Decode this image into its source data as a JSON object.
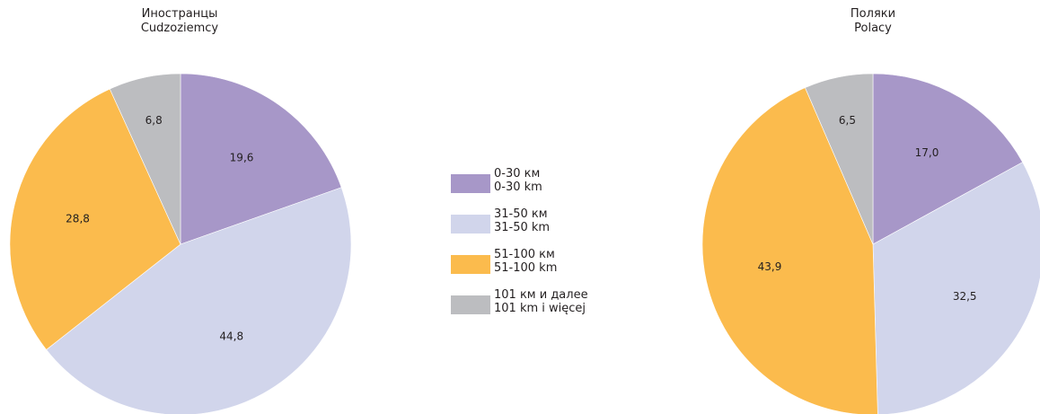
{
  "colors": {
    "0-30": "#a797c8",
    "31-50": "#d1d5eb",
    "51-100": "#fbbb4d",
    "101+": "#bcbdc0",
    "text": "#231f20"
  },
  "legend": [
    {
      "key": "0-30",
      "label_ru": "0-30 км",
      "label_pl": "0-30 km"
    },
    {
      "key": "31-50",
      "label_ru": "31-50 км",
      "label_pl": "31-50 km"
    },
    {
      "key": "51-100",
      "label_ru": "51-100 км",
      "label_pl": "51-100 km"
    },
    {
      "key": "101+",
      "label_ru": "101 км и далее",
      "label_pl": "101 km i więcej"
    }
  ],
  "chart_data": [
    {
      "type": "pie",
      "title_ru": "Иностранцы",
      "title_pl": "Cudzoziemcy",
      "categories": [
        "0-30 km",
        "31-50 km",
        "51-100 km",
        "101 km i więcej"
      ],
      "values": [
        19.6,
        44.8,
        28.8,
        6.8
      ],
      "labels": [
        "19,6",
        "44,8",
        "28,8",
        "6,8"
      ],
      "legend_position": "center"
    },
    {
      "type": "pie",
      "title_ru": "Поляки",
      "title_pl": "Polacy",
      "categories": [
        "0-30 km",
        "31-50 km",
        "51-100 km",
        "101 km i więcej"
      ],
      "values": [
        17.0,
        32.5,
        43.9,
        6.5
      ],
      "labels": [
        "17,0",
        "32,5",
        "43,9",
        "6,5"
      ],
      "legend_position": "center"
    }
  ]
}
